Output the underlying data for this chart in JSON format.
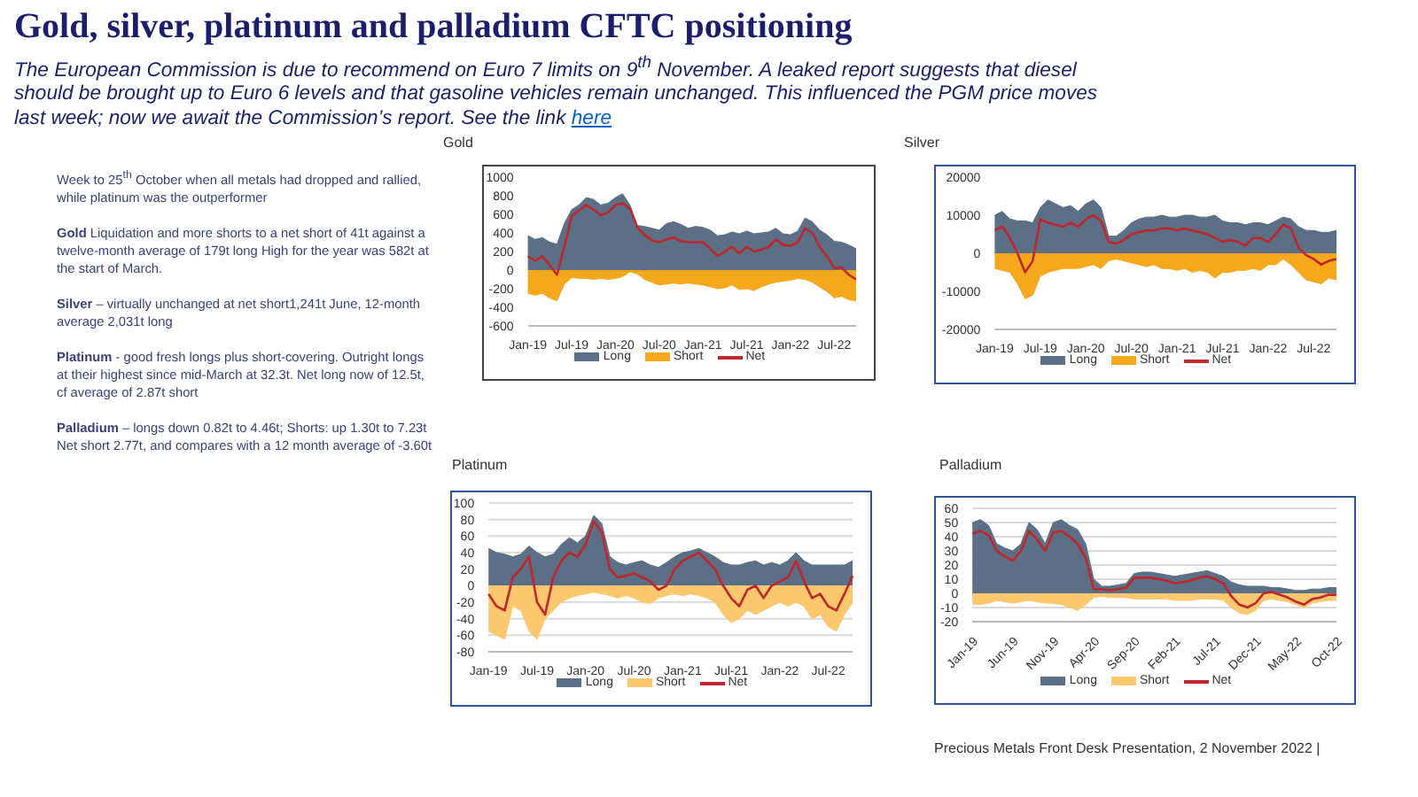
{
  "chart_data": [
    {
      "type": "other",
      "title": "Gold, silver, platinum and palladium CFTC positioning",
      "subtitle": "The European Commission is due to recommend on Euro 7 limits on 9$^{th}$ November.  A leaked report suggests that diesel should be brought up to Euro 6 levels and that gasoline vehicles remain unchanged.  This influenced the PGM price moves last week; now we await the Commission’s report.  See the link here",
      "annotations": [
        "Week to 25$^{th}$ October when all metals had dropped and rallied, while platinum was the outperformer",
        "Gold Liquidation and more shorts to a net short of 41t against a twelve-month  average of 179t long High for the year was 582t at the start of March.",
        "Silver – virtually unchanged at net short1,241t June, 12-month average 2,031t long",
        "Platinum  - good fresh longs plus short-covering. Outright longs at their highest since mid-March at 32.3t. Net long now of 12.5t, cf average of 2.87t short",
        "Palladium – longs down 0.82t to 4.46t; Shorts: up 1.30t to 7.23t Net short 2.77t, and compares with a 12 month average of -3.60t",
        "Precious Metals Front Desk Presentation, 2 November 2022 |"
      ]
    },
    {
      "type": "area",
      "title": "Gold",
      "categories": [
        "Jan-19",
        null,
        null,
        null,
        null,
        null,
        "Jul-19",
        null,
        null,
        null,
        null,
        null,
        "Jan-20",
        null,
        null,
        null,
        null,
        null,
        "Jul-20",
        null,
        null,
        null,
        null,
        null,
        "Jan-21",
        null,
        null,
        null,
        null,
        null,
        "Jul-21",
        null,
        null,
        null,
        null,
        null,
        "Jan-22",
        null,
        null,
        null,
        null,
        null,
        "Jul-22",
        null,
        null,
        null
      ],
      "ylim": [
        -600,
        1000
      ],
      "yticks": [
        -600,
        -400,
        -200,
        0,
        200,
        400,
        600,
        800,
        1000
      ],
      "legend": "bottom",
      "series": [
        {
          "name": "Long",
          "color": "#5b7086",
          "values": [
            370,
            330,
            350,
            300,
            280,
            500,
            650,
            700,
            780,
            760,
            700,
            720,
            780,
            820,
            700,
            480,
            470,
            450,
            430,
            500,
            520,
            490,
            450,
            470,
            460,
            430,
            370,
            380,
            410,
            390,
            420,
            390,
            400,
            410,
            450,
            390,
            380,
            420,
            560,
            520,
            430,
            380,
            310,
            300,
            270,
            230
          ]
        },
        {
          "name": "Short",
          "color": "#f5a81c",
          "values": [
            -250,
            -270,
            -250,
            -300,
            -330,
            -150,
            -80,
            -90,
            -90,
            -100,
            -90,
            -100,
            -90,
            -70,
            -20,
            -40,
            -100,
            -130,
            -160,
            -150,
            -140,
            -150,
            -140,
            -150,
            -160,
            -180,
            -200,
            -190,
            -160,
            -210,
            -200,
            -220,
            -180,
            -150,
            -130,
            -120,
            -110,
            -90,
            -100,
            -130,
            -180,
            -230,
            -300,
            -280,
            -320,
            -330
          ]
        },
        {
          "name": "Net",
          "type": "line",
          "color": "#c0272d",
          "values": [
            150,
            100,
            150,
            50,
            -50,
            250,
            580,
            640,
            700,
            650,
            590,
            620,
            700,
            720,
            660,
            460,
            380,
            320,
            300,
            330,
            350,
            310,
            300,
            300,
            300,
            230,
            150,
            200,
            250,
            180,
            250,
            200,
            220,
            250,
            330,
            270,
            260,
            300,
            450,
            400,
            250,
            150,
            20,
            30,
            -50,
            -100
          ]
        }
      ]
    },
    {
      "type": "area",
      "title": "Silver",
      "categories": [
        "Jan-19",
        null,
        null,
        null,
        null,
        null,
        "Jul-19",
        null,
        null,
        null,
        null,
        null,
        "Jan-20",
        null,
        null,
        null,
        null,
        null,
        "Jul-20",
        null,
        null,
        null,
        null,
        null,
        "Jan-21",
        null,
        null,
        null,
        null,
        null,
        "Jul-21",
        null,
        null,
        null,
        null,
        null,
        "Jan-22",
        null,
        null,
        null,
        null,
        null,
        "Jul-22",
        null,
        null,
        null
      ],
      "ylim": [
        -20000,
        20000
      ],
      "yticks": [
        -20000,
        -10000,
        0,
        10000,
        20000
      ],
      "legend": "bottom",
      "series": [
        {
          "name": "Long",
          "color": "#5b7086",
          "values": [
            10000,
            11000,
            9000,
            8500,
            8500,
            8000,
            12000,
            14000,
            13000,
            12000,
            12500,
            11000,
            13000,
            14000,
            12000,
            4500,
            4500,
            6000,
            8000,
            9000,
            9500,
            9500,
            10000,
            9500,
            9500,
            10000,
            10000,
            9500,
            9500,
            10000,
            8500,
            8000,
            8000,
            7500,
            8000,
            8000,
            7500,
            8500,
            9500,
            9000,
            7000,
            6000,
            6000,
            5500,
            5500,
            6000
          ]
        },
        {
          "name": "Short",
          "color": "#f5a81c",
          "values": [
            -4000,
            -4500,
            -5000,
            -8000,
            -12000,
            -11000,
            -6000,
            -5000,
            -4500,
            -4000,
            -4000,
            -4000,
            -3500,
            -3000,
            -4000,
            -2000,
            -1500,
            -2000,
            -2500,
            -3000,
            -3500,
            -3000,
            -4000,
            -4000,
            -4500,
            -4000,
            -5000,
            -4500,
            -5000,
            -6500,
            -5000,
            -5000,
            -4500,
            -4500,
            -4000,
            -4500,
            -3000,
            -3000,
            -1500,
            -3000,
            -5000,
            -7000,
            -7500,
            -8000,
            -6500,
            -7000
          ]
        },
        {
          "name": "Net",
          "type": "line",
          "color": "#c0272d",
          "values": [
            6000,
            7000,
            4000,
            0,
            -5000,
            -2000,
            9000,
            8000,
            7500,
            7000,
            8000,
            7000,
            9000,
            10000,
            8500,
            3000,
            2500,
            3500,
            5000,
            5500,
            6000,
            6000,
            6500,
            6500,
            6000,
            6500,
            6000,
            5500,
            5000,
            4000,
            3000,
            3500,
            3000,
            2000,
            4000,
            4000,
            3000,
            5000,
            7500,
            6500,
            1500,
            -500,
            -1500,
            -3000,
            -2000,
            -1500
          ]
        }
      ]
    },
    {
      "type": "area",
      "title": "Platinum",
      "categories": [
        "Jan-19",
        null,
        null,
        null,
        null,
        null,
        "Jul-19",
        null,
        null,
        null,
        null,
        null,
        "Jan-20",
        null,
        null,
        null,
        null,
        null,
        "Jul-20",
        null,
        null,
        null,
        null,
        null,
        "Jan-21",
        null,
        null,
        null,
        null,
        null,
        "Jul-21",
        null,
        null,
        null,
        null,
        null,
        "Jan-22",
        null,
        null,
        null,
        null,
        null,
        "Jul-22",
        null,
        null,
        null
      ],
      "ylim": [
        -80,
        100
      ],
      "yticks": [
        -80,
        -60,
        -40,
        -20,
        0,
        20,
        40,
        60,
        80,
        100
      ],
      "grid": "y",
      "legend": "bottom",
      "series": [
        {
          "name": "Long",
          "color": "#5b7086",
          "values": [
            45,
            40,
            38,
            35,
            38,
            48,
            40,
            35,
            38,
            50,
            58,
            52,
            60,
            85,
            75,
            35,
            28,
            25,
            28,
            30,
            25,
            22,
            28,
            35,
            40,
            42,
            45,
            40,
            35,
            28,
            25,
            25,
            28,
            30,
            25,
            28,
            25,
            30,
            40,
            30,
            25,
            25,
            25,
            25,
            25,
            30
          ]
        },
        {
          "name": "Short",
          "color": "#fbc86e",
          "values": [
            -55,
            -60,
            -65,
            -25,
            -30,
            -55,
            -65,
            -40,
            -30,
            -20,
            -15,
            -12,
            -10,
            -8,
            -10,
            -12,
            -15,
            -12,
            -15,
            -20,
            -22,
            -15,
            -12,
            -10,
            -12,
            -10,
            -12,
            -15,
            -20,
            -35,
            -45,
            -40,
            -30,
            -35,
            -30,
            -25,
            -20,
            -25,
            -20,
            -25,
            -40,
            -35,
            -50,
            -55,
            -35,
            -20
          ]
        },
        {
          "name": "Net",
          "type": "line",
          "color": "#c0272d",
          "values": [
            -10,
            -25,
            -30,
            10,
            20,
            35,
            -20,
            -35,
            10,
            30,
            40,
            35,
            50,
            78,
            65,
            20,
            10,
            12,
            15,
            10,
            5,
            -5,
            0,
            20,
            30,
            35,
            40,
            30,
            20,
            0,
            -15,
            -25,
            -5,
            0,
            -15,
            0,
            5,
            10,
            30,
            5,
            -15,
            -10,
            -25,
            -30,
            -10,
            12
          ]
        }
      ]
    },
    {
      "type": "area",
      "title": "Palladium",
      "categories": [
        "Jan-19",
        null,
        null,
        null,
        null,
        "Jun-19",
        null,
        null,
        null,
        null,
        "Nov-19",
        null,
        null,
        null,
        null,
        "Apr-20",
        null,
        null,
        null,
        null,
        "Sep-20",
        null,
        null,
        null,
        null,
        "Feb-21",
        null,
        null,
        null,
        null,
        "Jul-21",
        null,
        null,
        null,
        null,
        "Dec-21",
        null,
        null,
        null,
        null,
        "May-22",
        null,
        null,
        null,
        null,
        "Oct-22"
      ],
      "ylim": [
        -20,
        60
      ],
      "yticks": [
        -20,
        -10,
        0,
        10,
        20,
        30,
        40,
        50,
        60
      ],
      "grid": "y",
      "legend": "bottom",
      "series": [
        {
          "name": "Long",
          "color": "#5b7086",
          "values": [
            50,
            52,
            48,
            35,
            32,
            30,
            35,
            50,
            45,
            35,
            50,
            52,
            48,
            45,
            35,
            10,
            5,
            5,
            6,
            7,
            14,
            15,
            15,
            14,
            13,
            12,
            13,
            14,
            15,
            16,
            14,
            12,
            8,
            6,
            5,
            5,
            5,
            4,
            4,
            3,
            2,
            2,
            3,
            3,
            4,
            4
          ]
        },
        {
          "name": "Short",
          "color": "#fbc86e",
          "values": [
            -8,
            -8,
            -7,
            -5,
            -6,
            -7,
            -6,
            -5,
            -6,
            -7,
            -7,
            -8,
            -10,
            -12,
            -8,
            -3,
            -2,
            -3,
            -3,
            -3,
            -4,
            -4,
            -4,
            -4,
            -4,
            -5,
            -5,
            -5,
            -4,
            -4,
            -4,
            -5,
            -10,
            -14,
            -15,
            -12,
            -5,
            -4,
            -5,
            -6,
            -8,
            -10,
            -7,
            -6,
            -5,
            -5
          ]
        },
        {
          "name": "Net",
          "type": "line",
          "color": "#c0272d",
          "values": [
            42,
            44,
            41,
            30,
            26,
            23,
            30,
            44,
            38,
            30,
            43,
            44,
            40,
            35,
            25,
            3,
            3,
            2,
            3,
            4,
            11,
            11,
            11,
            10,
            9,
            7,
            8,
            9,
            11,
            12,
            10,
            7,
            -2,
            -8,
            -10,
            -7,
            0,
            1,
            -1,
            -3,
            -6,
            -8,
            -4,
            -3,
            -1,
            -1
          ]
        }
      ]
    }
  ]
}
